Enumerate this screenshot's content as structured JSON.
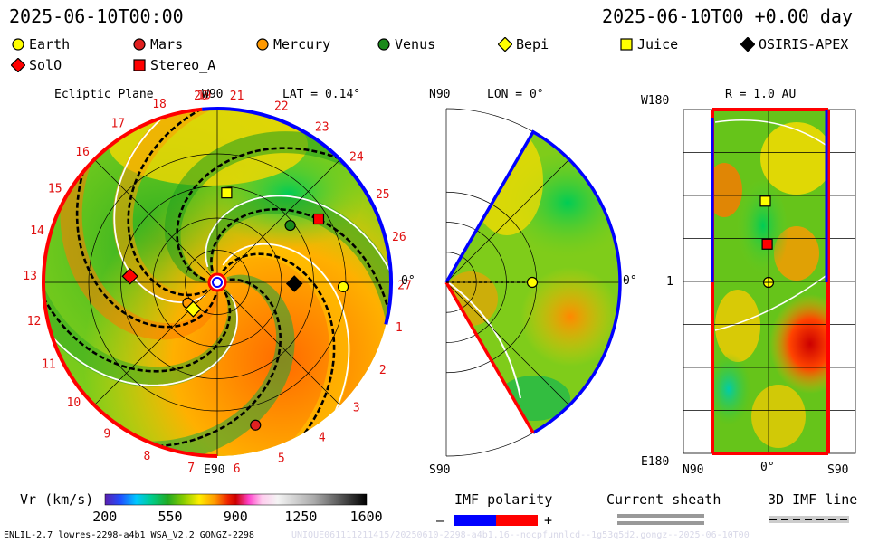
{
  "header": {
    "left_date": "2025-06-10T00:00",
    "right_date": "2025-06-10T00 +0.00 day"
  },
  "legend": [
    {
      "label": "Earth",
      "shape": "circle",
      "color": "#ffff00"
    },
    {
      "label": "Mars",
      "shape": "circle",
      "color": "#e02020"
    },
    {
      "label": "Mercury",
      "shape": "circle",
      "color": "#ff9900"
    },
    {
      "label": "Venus",
      "shape": "circle",
      "color": "#1a8a1a"
    },
    {
      "label": "Bepi",
      "shape": "diamond",
      "color": "#ffff00"
    },
    {
      "label": "Juice",
      "shape": "square",
      "color": "#ffff00"
    },
    {
      "label": "OSIRIS-APEX",
      "shape": "diamond",
      "color": "#000000"
    },
    {
      "label": "SolO",
      "shape": "diamond",
      "color": "#ff0000"
    },
    {
      "label": "Stereo_A",
      "shape": "square",
      "color": "#ff0000"
    }
  ],
  "chart_data": [
    {
      "type": "heatmap",
      "panel": "ecliptic",
      "title": "Ecliptic Plane",
      "lat_label": "LAT = 0.14°",
      "top_label": "W90",
      "bottom_label": "E90",
      "right_label": "0°",
      "carrington_ticks": [
        "20",
        "21",
        "22",
        "23",
        "24",
        "25",
        "26",
        "27",
        "1",
        "2",
        "3",
        "4",
        "5",
        "6",
        "7",
        "8",
        "9",
        "10",
        "11",
        "12",
        "13",
        "14",
        "15",
        "16",
        "17",
        "18",
        "19"
      ],
      "carrington_angles_deg": [
        95,
        84,
        70,
        56,
        42,
        28,
        14,
        -1,
        -14,
        -28,
        -42,
        -56,
        -70,
        -84,
        -98,
        -112,
        -126,
        -140,
        -154,
        -168,
        -182,
        -196,
        -210,
        -224,
        -238,
        -252,
        -266
      ],
      "rings_au": [
        0.25,
        0.5,
        0.75,
        1.0
      ],
      "objects": [
        {
          "name": "Earth",
          "shape": "circle",
          "color": "#ffff00",
          "r_au": 0.98,
          "angle_deg": -2
        },
        {
          "name": "Mars",
          "shape": "circle",
          "color": "#e02020",
          "r_au": 1.15,
          "angle_deg": -75
        },
        {
          "name": "Mercury",
          "shape": "circle",
          "color": "#ff9900",
          "r_au": 0.28,
          "angle_deg": -145
        },
        {
          "name": "Venus",
          "shape": "circle",
          "color": "#1a8a1a",
          "r_au": 0.72,
          "angle_deg": 38
        },
        {
          "name": "Bepi",
          "shape": "diamond",
          "color": "#ffff00",
          "r_au": 0.28,
          "angle_deg": -132
        },
        {
          "name": "Juice",
          "shape": "square",
          "color": "#ffff00",
          "r_au": 0.7,
          "angle_deg": 84
        },
        {
          "name": "OSIRIS-APEX",
          "shape": "diamond",
          "color": "#000000",
          "r_au": 0.6,
          "angle_deg": -1
        },
        {
          "name": "SolO",
          "shape": "diamond",
          "color": "#ff0000",
          "r_au": 0.68,
          "angle_deg": 176
        },
        {
          "name": "Stereo_A",
          "shape": "square",
          "color": "#ff0000",
          "r_au": 0.93,
          "angle_deg": 32
        }
      ]
    },
    {
      "type": "heatmap",
      "panel": "meridional",
      "lon_label": "LON = 0°",
      "top_label": "N90",
      "bottom_label": "S90",
      "right_label": "0°",
      "objects": [
        {
          "name": "Earth",
          "shape": "circle",
          "color": "#ffff00",
          "r_au": 1.0,
          "lat_deg": 0
        }
      ]
    },
    {
      "type": "heatmap",
      "panel": "sphere",
      "r_label": "R = 1.0 AU",
      "y_top_label": "W180",
      "y_mid_label": "1",
      "y_bottom_label": "E180",
      "x_labels": [
        "N90",
        "0°",
        "S90"
      ],
      "objects": [
        {
          "name": "Juice",
          "shape": "square",
          "color": "#ffff00",
          "lat_deg": 5,
          "lon_deg": 85
        },
        {
          "name": "Stereo_A",
          "shape": "square",
          "color": "#ff0000",
          "lat_deg": 2,
          "lon_deg": 40
        },
        {
          "name": "Earth",
          "shape": "circle",
          "color": "#ffff00",
          "lat_deg": 0,
          "lon_deg": 0
        }
      ]
    }
  ],
  "colorbar": {
    "title": "Vr (km/s)",
    "ticks": [
      "200",
      "550",
      "900",
      "1250",
      "1600"
    ],
    "min": 200,
    "max": 1600
  },
  "imf_legend": {
    "title": "IMF polarity",
    "minus": "–",
    "plus": "+"
  },
  "sheath_legend": {
    "title": "Current sheath"
  },
  "imf3d_legend": {
    "title": "3D IMF line"
  },
  "footer": {
    "model_info": "ENLIL-2.7 lowres-2298-a4b1 WSA_V2.2 GONGZ-2298",
    "run_id": "UNIQUE061111211415/20250610-2298-a4b1.16--nocpfunnlcd--1g53q5d2.gongz--2025-06-10T00"
  }
}
